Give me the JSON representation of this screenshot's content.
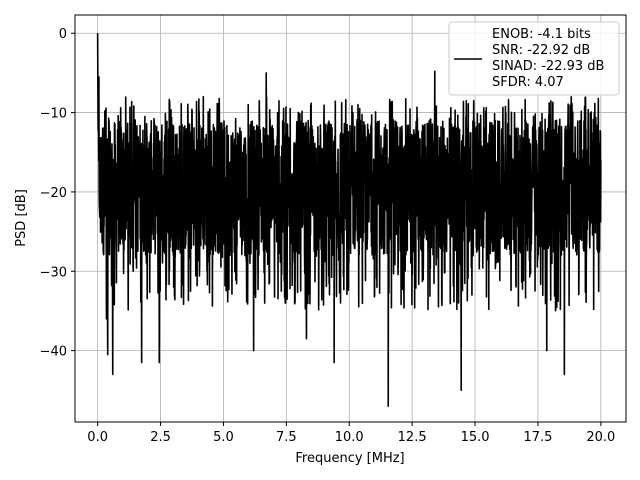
{
  "chart_data": {
    "type": "line",
    "title": "",
    "xlabel": "Frequency [MHz]",
    "ylabel": "PSD [dB]",
    "xlim": [
      -0.9,
      21.0
    ],
    "ylim": [
      -49.0,
      2.3
    ],
    "xticks": [
      0.0,
      2.5,
      5.0,
      7.5,
      10.0,
      12.5,
      15.0,
      17.5,
      20.0
    ],
    "xtick_labels": [
      "0.0",
      "2.5",
      "5.0",
      "7.5",
      "10.0",
      "12.5",
      "15.0",
      "17.5",
      "20.0"
    ],
    "yticks": [
      0,
      -10,
      -20,
      -30,
      -40
    ],
    "ytick_labels": [
      "0",
      "−10",
      "−20",
      "−30",
      "−40"
    ],
    "grid": true,
    "legend_position": "top-right",
    "legend_entries": [
      "ENOB: -4.1 bits",
      "SNR: -22.92 dB",
      "SINAD: -22.93 dB",
      "SFDR: 4.07"
    ],
    "series": [
      {
        "color": "#000000",
        "x_range": [
          0.0,
          20.0
        ],
        "noise_band_db": [
          -28,
          -11
        ],
        "peak_db": 0.0,
        "min_db": -47.0,
        "notable_points": [
          {
            "x": 0.0,
            "y": 0.0
          },
          {
            "x": 0.05,
            "y": -5.5
          },
          {
            "x": 0.2,
            "y": -12.0
          },
          {
            "x": 0.35,
            "y": -36.0
          },
          {
            "x": 0.4,
            "y": -40.5
          },
          {
            "x": 0.6,
            "y": -43.0
          },
          {
            "x": 1.75,
            "y": -41.5
          },
          {
            "x": 2.45,
            "y": -41.5
          },
          {
            "x": 6.2,
            "y": -40.0
          },
          {
            "x": 8.3,
            "y": -38.5
          },
          {
            "x": 9.4,
            "y": -41.5
          },
          {
            "x": 11.55,
            "y": -47.0
          },
          {
            "x": 14.45,
            "y": -45.0
          },
          {
            "x": 17.85,
            "y": -40.0
          },
          {
            "x": 18.55,
            "y": -43.0
          },
          {
            "x": 4.2,
            "y": -8.0
          },
          {
            "x": 6.7,
            "y": -5.0
          },
          {
            "x": 13.4,
            "y": -4.8
          },
          {
            "x": 8.6,
            "y": -19.0
          }
        ]
      }
    ]
  }
}
